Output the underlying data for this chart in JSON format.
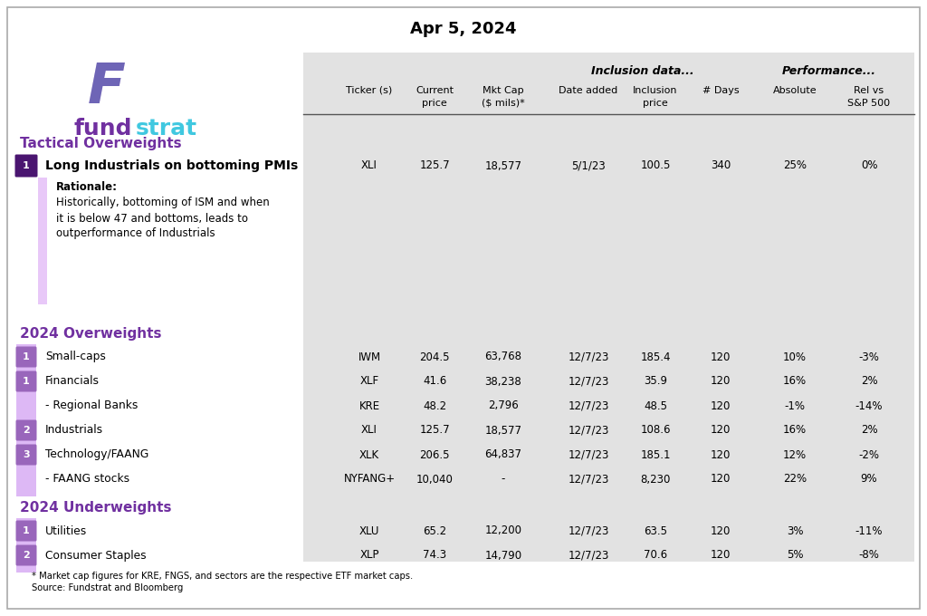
{
  "title": "Apr 5, 2024",
  "inclusion_header": "Inclusion data...",
  "performance_header": "Performance...",
  "tactical_overweights_label": "Tactical Overweights",
  "overweights_label": "2024 Overweights",
  "underweights_label": "2024 Underweights",
  "tactical_rows": [
    {
      "num": "1",
      "name": "Long Industrials on bottoming PMIs",
      "ticker": "XLI",
      "price": "125.7",
      "mktcap": "18,577",
      "date": "5/1/23",
      "inc_price": "100.5",
      "days": "340",
      "absolute": "25%",
      "rel": "0%",
      "rationale_title": "Rationale:",
      "rationale_lines": [
        "Historically, bottoming of ISM and when",
        "it is below 47 and bottoms, leads to",
        "outperformance of Industrials"
      ]
    }
  ],
  "overweight_rows": [
    {
      "num": "1",
      "name": "Small-caps",
      "ticker": "IWM",
      "price": "204.5",
      "mktcap": "63,768",
      "date": "12/7/23",
      "inc_price": "185.4",
      "days": "120",
      "absolute": "10%",
      "rel": "-3%"
    },
    {
      "num": "1",
      "name": "Financials",
      "ticker": "XLF",
      "price": "41.6",
      "mktcap": "38,238",
      "date": "12/7/23",
      "inc_price": "35.9",
      "days": "120",
      "absolute": "16%",
      "rel": "2%"
    },
    {
      "num": "",
      "name": "- Regional Banks",
      "ticker": "KRE",
      "price": "48.2",
      "mktcap": "2,796",
      "date": "12/7/23",
      "inc_price": "48.5",
      "days": "120",
      "absolute": "-1%",
      "rel": "-14%"
    },
    {
      "num": "2",
      "name": "Industrials",
      "ticker": "XLI",
      "price": "125.7",
      "mktcap": "18,577",
      "date": "12/7/23",
      "inc_price": "108.6",
      "days": "120",
      "absolute": "16%",
      "rel": "2%"
    },
    {
      "num": "3",
      "name": "Technology/FAANG",
      "ticker": "XLK",
      "price": "206.5",
      "mktcap": "64,837",
      "date": "12/7/23",
      "inc_price": "185.1",
      "days": "120",
      "absolute": "12%",
      "rel": "-2%"
    },
    {
      "num": "",
      "name": "- FAANG stocks",
      "ticker": "NYFANG+",
      "price": "10,040",
      "mktcap": "-",
      "date": "12/7/23",
      "inc_price": "8,230",
      "days": "120",
      "absolute": "22%",
      "rel": "9%"
    }
  ],
  "underweight_rows": [
    {
      "num": "1",
      "name": "Utilities",
      "ticker": "XLU",
      "price": "65.2",
      "mktcap": "12,200",
      "date": "12/7/23",
      "inc_price": "63.5",
      "days": "120",
      "absolute": "3%",
      "rel": "-11%"
    },
    {
      "num": "2",
      "name": "Consumer Staples",
      "ticker": "XLP",
      "price": "74.3",
      "mktcap": "14,790",
      "date": "12/7/23",
      "inc_price": "70.6",
      "days": "120",
      "absolute": "5%",
      "rel": "-8%"
    }
  ],
  "footnote_lines": [
    "* Market cap figures for KRE, FNGS, and sectors are the respective ETF market caps.",
    "Source: Fundstrat and Bloomberg"
  ],
  "bg_color": "#ffffff",
  "table_bg": "#e2e2e2",
  "purple_dark": "#5b2080",
  "purple_badge_tactical": "#4a1570",
  "purple_badge_ow": "#9966bb",
  "purple_light_tac": "#e8c8f8",
  "purple_light_ow": "#ddb8f5",
  "section_color": "#7030a0",
  "fund_color": "#7030a0",
  "strat_color": "#40c8e0",
  "logo_f_color": "#7030a0",
  "logo_f_top_color": "#40c8e0",
  "text_color": "#000000",
  "sep_line_color": "#555555",
  "border_color": "#aaaaaa"
}
